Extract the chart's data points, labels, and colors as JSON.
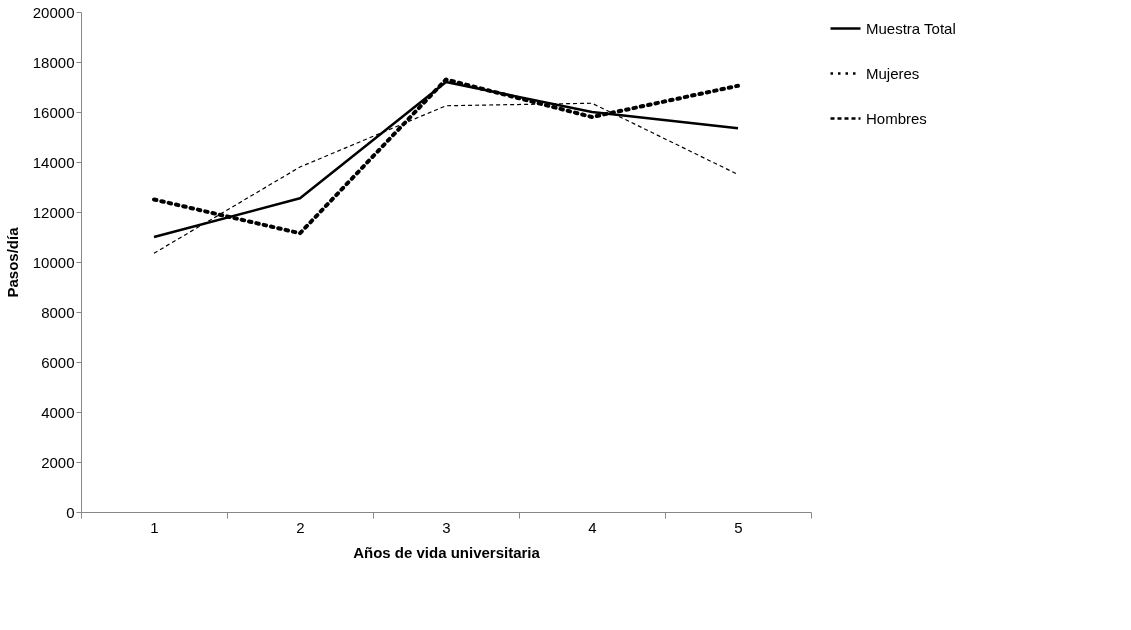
{
  "chart_data": {
    "type": "line",
    "xlabel": "Años de vida universitaria",
    "ylabel": "Pasos/día",
    "categories": [
      "1",
      "2",
      "3",
      "4",
      "5"
    ],
    "series": [
      {
        "name": "Muestra Total",
        "color": "#000000",
        "line_style": "solid",
        "values": [
          11000,
          12550,
          17200,
          16000,
          15350
        ]
      },
      {
        "name": "Mujeres",
        "color": "#000000",
        "line_style": "dotted",
        "values": [
          12500,
          11150,
          17300,
          15800,
          17050
        ]
      },
      {
        "name": "Hombres",
        "color": "#000000",
        "line_style": "dashed",
        "values": [
          10350,
          13800,
          16250,
          16350,
          13500
        ]
      }
    ],
    "ylim": [
      0,
      20000
    ],
    "yticks": [
      0,
      2000,
      4000,
      6000,
      8000,
      10000,
      12000,
      14000,
      16000,
      18000,
      20000
    ],
    "grid": false,
    "legend": "right",
    "marker": "none"
  }
}
